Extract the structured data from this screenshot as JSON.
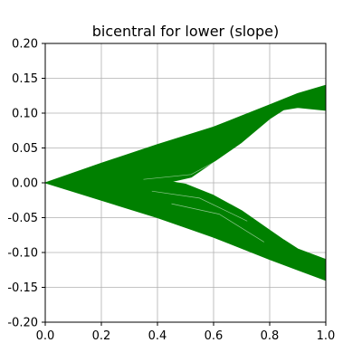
{
  "chart_data": {
    "type": "area",
    "title": "bicentral for lower (slope)",
    "xlabel": "",
    "ylabel": "",
    "xlim": [
      0.0,
      1.0
    ],
    "ylim": [
      -0.2,
      0.2
    ],
    "xticks": [
      "0.0",
      "0.2",
      "0.4",
      "0.6",
      "0.8",
      "1.0"
    ],
    "yticks": [
      "-0.20",
      "-0.15",
      "-0.10",
      "-0.05",
      "0.00",
      "0.05",
      "0.10",
      "0.15",
      "0.20"
    ],
    "grid": true,
    "color": "#008000",
    "series": [
      {
        "region": "upper",
        "outer": [
          [
            0.0,
            0.0
          ],
          [
            0.2,
            0.028
          ],
          [
            0.4,
            0.055
          ],
          [
            0.6,
            0.08
          ],
          [
            0.8,
            0.112
          ],
          [
            0.9,
            0.128
          ],
          [
            1.0,
            0.14
          ]
        ],
        "inner": [
          [
            1.0,
            0.104
          ],
          [
            0.9,
            0.108
          ],
          [
            0.85,
            0.105
          ],
          [
            0.8,
            0.092
          ],
          [
            0.7,
            0.058
          ],
          [
            0.6,
            0.03
          ],
          [
            0.52,
            0.008
          ],
          [
            0.4,
            -0.003
          ],
          [
            0.2,
            -0.002
          ],
          [
            0.0,
            0.0
          ]
        ]
      },
      {
        "region": "lower",
        "outer": [
          [
            0.0,
            0.0
          ],
          [
            0.2,
            -0.025
          ],
          [
            0.4,
            -0.05
          ],
          [
            0.6,
            -0.078
          ],
          [
            0.8,
            -0.11
          ],
          [
            0.9,
            -0.125
          ],
          [
            1.0,
            -0.14
          ]
        ],
        "inner": [
          [
            1.0,
            -0.11
          ],
          [
            0.9,
            -0.095
          ],
          [
            0.85,
            -0.082
          ],
          [
            0.8,
            -0.068
          ],
          [
            0.7,
            -0.04
          ],
          [
            0.6,
            -0.018
          ],
          [
            0.5,
            -0.002
          ],
          [
            0.4,
            0.005
          ],
          [
            0.2,
            0.003
          ],
          [
            0.0,
            0.0
          ]
        ]
      }
    ]
  }
}
